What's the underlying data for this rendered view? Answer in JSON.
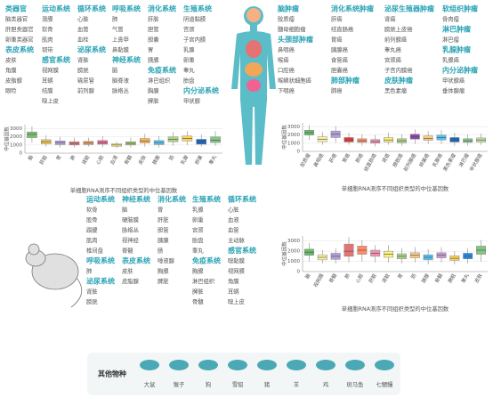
{
  "human_columns": [
    [
      {
        "title": "类器官",
        "items": [
          "脑类器官",
          "肝胆类器官",
          "卵巢类器官"
        ]
      },
      {
        "title": "表皮系统",
        "items": [
          "皮肤",
          "角膜",
          "皮脂腺",
          "眼睑"
        ]
      }
    ],
    [
      {
        "title": "运动系统",
        "items": [
          "滑膜",
          "软骨",
          "肌肉",
          "韧带"
        ]
      },
      {
        "title": "感官系统",
        "items": [
          "视网膜",
          "耳蜗",
          "结膜",
          "嗅上皮"
        ]
      }
    ],
    [
      {
        "title": "循环系统",
        "items": [
          "心脏",
          "血管",
          "血栓"
        ]
      },
      {
        "title": "泌尿系统",
        "items": [
          "肾脏",
          "膀胱",
          "输尿管",
          "前列腺"
        ]
      }
    ],
    [
      {
        "title": "呼吸系统",
        "items": [
          "肺",
          "气管",
          "上鼻甲",
          "鼻黏膜"
        ]
      },
      {
        "title": "神经系统",
        "items": [
          "脑",
          "脑脊液",
          "脉络丛"
        ]
      }
    ],
    [
      {
        "title": "消化系统",
        "items": [
          "肝脏",
          "胆管",
          "胆囊",
          "胃",
          "胰腺"
        ]
      },
      {
        "title": "免疫系统",
        "items": [
          "淋巴组织",
          "胸腺",
          "脾脏"
        ]
      }
    ],
    [
      {
        "title": "生殖系统",
        "items": [
          "阴道黏膜",
          "宫颈",
          "子宫内膜",
          "乳腺",
          "卵巢",
          "睾丸",
          "胎盘"
        ]
      },
      {
        "title": "内分泌系统",
        "items": [
          "甲状腺"
        ]
      }
    ]
  ],
  "tumor_columns": [
    [
      {
        "title": "脑肿瘤",
        "items": [
          "胶质瘤",
          "髓母细胞瘤"
        ]
      },
      {
        "title": "头颈部肿瘤",
        "items": [
          "鼻咽癌",
          "喉癌",
          "口腔癌",
          "喉鳞状细胞癌",
          "下咽癌"
        ]
      }
    ],
    [
      {
        "title": "消化系统肿瘤",
        "items": [
          "肝癌",
          "结直肠癌",
          "胃癌",
          "胰腺癌",
          "食管癌",
          "胆囊癌"
        ]
      },
      {
        "title": "肺部肿瘤",
        "items": [
          "肺癌"
        ]
      }
    ],
    [
      {
        "title": "泌尿生殖器肿瘤",
        "items": [
          "肾癌",
          "膀胱上皮癌",
          "前列腺癌",
          "睾丸癌",
          "宫颈癌",
          "子宫内膜癌"
        ]
      },
      {
        "title": "皮肤肿瘤",
        "items": [
          "黑色素瘤"
        ]
      }
    ],
    [
      {
        "title": "软组织肿瘤",
        "items": [
          "骨肉瘤"
        ]
      },
      {
        "title": "淋巴肿瘤",
        "items": [
          "淋巴瘤"
        ]
      },
      {
        "title": "乳腺肿瘤",
        "items": [
          "乳腺癌"
        ]
      },
      {
        "title": "内分泌肿瘤",
        "items": [
          "甲状腺癌",
          "垂体腺瘤"
        ]
      }
    ]
  ],
  "mouse_columns": [
    [
      {
        "title": "运动系统",
        "items": [
          "软骨",
          "股骨",
          "跟腱",
          "肌肉",
          "椎间盘"
        ]
      },
      {
        "title": "呼吸系统",
        "items": [
          "肺"
        ]
      },
      {
        "title": "泌尿系统",
        "items": [
          "肾脏",
          "膀胱"
        ]
      }
    ],
    [
      {
        "title": "神经系统",
        "items": [
          "脑",
          "硬脑膜",
          "脉络丛",
          "视神经",
          "脊髓"
        ]
      },
      {
        "title": "表皮系统",
        "items": [
          "皮肤",
          "皮脂腺"
        ]
      }
    ],
    [
      {
        "title": "消化系统",
        "items": [
          "胃",
          "肝脏",
          "胆管",
          "胰腺",
          "肠",
          "唾液腺",
          "胸腺",
          "脾脏"
        ]
      }
    ],
    [
      {
        "title": "生殖系统",
        "items": [
          "乳腺",
          "卵巢",
          "宫颈",
          "胎盘",
          "睾丸"
        ]
      },
      {
        "title": "免疫系统",
        "items": [
          "胸腺",
          "淋巴组织",
          "脾脏",
          "骨髓"
        ]
      }
    ],
    [
      {
        "title": "循环系统",
        "items": [
          "心脏",
          "血液",
          "血管",
          "主动脉"
        ]
      },
      {
        "title": "感官系统",
        "items": [
          "嗅黏膜",
          "视网膜",
          "角膜",
          "耳蜗",
          "嗅上皮"
        ]
      }
    ]
  ],
  "other_species": {
    "title": "其他物种",
    "items": [
      "大鼠",
      "猴子",
      "狗",
      "雪貂",
      "猪",
      "羊",
      "鸡",
      "斑马鱼",
      "七鳃鳗"
    ]
  },
  "chart_data": [
    {
      "type": "box",
      "x_label": "单细胞RNA测序不同组织类型的中位基因数",
      "y_label": "中位基因数",
      "categories": [
        "脑",
        "肝脏",
        "胃",
        "肺",
        "肾脏",
        "心脏",
        "血液",
        "骨髓",
        "皮肤",
        "胰腺",
        "肠",
        "乳腺",
        "卵巢",
        "睾丸"
      ],
      "colors": [
        "#7dbf6a",
        "#f2c94c",
        "#b39ddb",
        "#e57373",
        "#ef9a5a",
        "#f06292",
        "#fff176",
        "#9ccc65",
        "#ffb74d",
        "#4fc3f7",
        "#aed581",
        "#ffd54f",
        "#1565c0",
        "#81c784"
      ],
      "low": [
        1300,
        800,
        700,
        700,
        800,
        700,
        600,
        700,
        800,
        700,
        900,
        1000,
        800,
        900
      ],
      "q1": [
        1900,
        1150,
        1050,
        1000,
        1050,
        1100,
        850,
        1000,
        1250,
        1050,
        1400,
        1500,
        1100,
        1300
      ],
      "median": [
        2300,
        1400,
        1300,
        1200,
        1250,
        1300,
        1000,
        1200,
        1500,
        1300,
        1700,
        1800,
        1400,
        1600
      ],
      "q3": [
        2600,
        1650,
        1500,
        1400,
        1450,
        1550,
        1150,
        1400,
        1800,
        1550,
        2000,
        2100,
        1700,
        2000
      ],
      "high": [
        3300,
        2200,
        2000,
        1900,
        1900,
        2100,
        1400,
        1900,
        2400,
        2100,
        2600,
        2700,
        2300,
        2700
      ],
      "ylim": [
        0,
        3500
      ],
      "yticks": [
        0,
        1000,
        2000,
        3000
      ],
      "grid": true
    },
    {
      "type": "box",
      "x_label": "单细胞RNA测序不同组织类型的中位基因数",
      "y_label": "中位基因数",
      "categories": [
        "胶质瘤",
        "鼻咽癌",
        "肝癌",
        "胃癌",
        "肺癌",
        "结直肠癌",
        "肾癌",
        "膀胱癌",
        "前列腺癌",
        "卵巢癌",
        "乳腺癌",
        "黑色素瘤",
        "淋巴瘤",
        "甲状腺癌"
      ],
      "colors": [
        "#66bb6a",
        "#fff59d",
        "#b39ddb",
        "#e53935",
        "#ff8a65",
        "#f48fb1",
        "#fff176",
        "#aed581",
        "#8e44ad",
        "#ffcc80",
        "#4fc3f7",
        "#1565c0",
        "#81c784",
        "#c5e1a5"
      ],
      "low": [
        1400,
        800,
        1100,
        800,
        700,
        600,
        800,
        700,
        900,
        900,
        900,
        700,
        700,
        800
      ],
      "q1": [
        2000,
        1200,
        1700,
        1150,
        1100,
        1000,
        1150,
        1050,
        1500,
        1350,
        1400,
        1150,
        1100,
        1150
      ],
      "median": [
        2300,
        1500,
        2100,
        1400,
        1300,
        1200,
        1400,
        1300,
        1800,
        1600,
        1700,
        1400,
        1300,
        1400
      ],
      "q3": [
        2600,
        1800,
        2500,
        1700,
        1550,
        1450,
        1700,
        1550,
        2100,
        1900,
        2000,
        1700,
        1550,
        1650
      ],
      "high": [
        3200,
        2400,
        3100,
        2300,
        2100,
        2000,
        2300,
        2100,
        2700,
        2500,
        2600,
        2300,
        2100,
        2200
      ],
      "ylim": [
        0,
        3500
      ],
      "yticks": [
        0,
        1000,
        2000,
        3000
      ],
      "grid": true
    },
    {
      "type": "box",
      "x_label": "单细胞RNA测序不同组织类型的中位基因数",
      "y_label": "中位基因数",
      "categories": [
        "脑",
        "视网膜",
        "脊髓",
        "肺",
        "心脏",
        "肝脏",
        "肾脏",
        "胃",
        "肠",
        "胰腺",
        "骨髓",
        "脾脏",
        "睾丸",
        "皮肤"
      ],
      "colors": [
        "#66bb6a",
        "#fff59d",
        "#b39ddb",
        "#e57373",
        "#ff8a65",
        "#f48fb1",
        "#fff176",
        "#aed581",
        "#ffcc80",
        "#4fc3f7",
        "#ce93d8",
        "#ffd54f",
        "#1e88e5",
        "#81c784"
      ],
      "low": [
        1000,
        800,
        800,
        900,
        1000,
        900,
        900,
        800,
        900,
        700,
        900,
        700,
        800,
        1000
      ],
      "q1": [
        1600,
        1150,
        1200,
        1500,
        1700,
        1500,
        1400,
        1250,
        1350,
        1150,
        1350,
        1100,
        1250,
        1700
      ],
      "median": [
        1900,
        1400,
        1500,
        2000,
        2100,
        1800,
        1700,
        1500,
        1600,
        1400,
        1600,
        1300,
        1500,
        2100
      ],
      "q3": [
        2200,
        1650,
        1800,
        2700,
        2500,
        2100,
        2000,
        1750,
        1850,
        1650,
        1850,
        1550,
        1800,
        2500
      ],
      "high": [
        2800,
        2100,
        2300,
        3400,
        3100,
        2600,
        2600,
        2300,
        2400,
        2200,
        2400,
        2000,
        2300,
        3100
      ],
      "ylim": [
        0,
        3500
      ],
      "yticks": [
        0,
        1000,
        2000,
        3000
      ],
      "grid": true
    }
  ]
}
